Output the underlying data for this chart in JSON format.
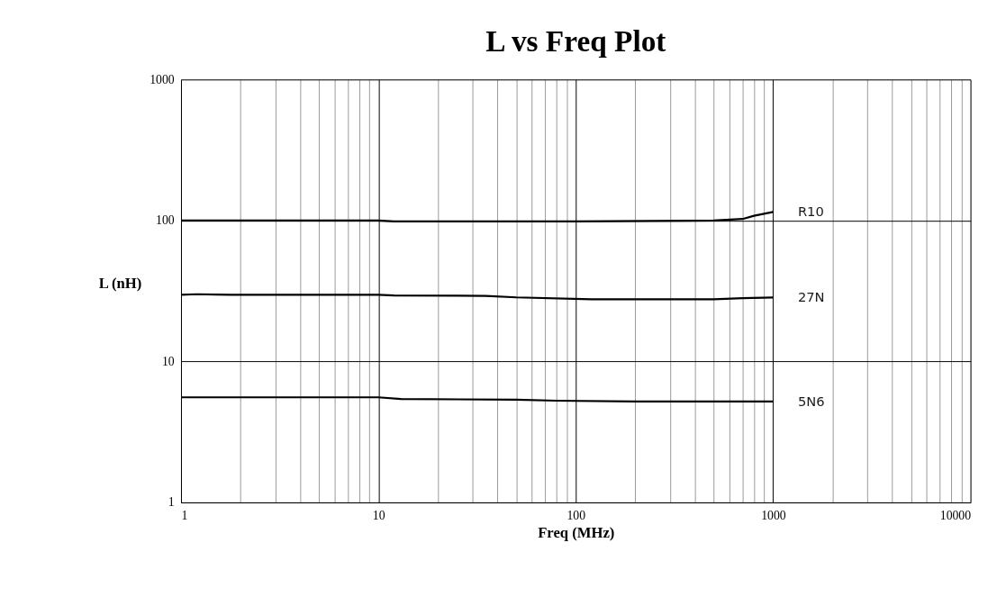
{
  "chart_data": {
    "type": "line",
    "title": "L vs Freq Plot",
    "xlabel": "Freq (MHz)",
    "ylabel": "L (nH)",
    "log": "xy",
    "xlim": [
      1,
      10000
    ],
    "ylim": [
      1,
      1000
    ],
    "xticks": [
      1,
      10,
      100,
      1000,
      10000
    ],
    "yticks": [
      1,
      10,
      100,
      1000
    ],
    "grid": true,
    "legend": false,
    "marker": "none",
    "line_style": "solid",
    "series": [
      {
        "name": "R10",
        "color": "#000000",
        "x": [
          1,
          10,
          12,
          100,
          500,
          700,
          800,
          1000
        ],
        "values": [
          100,
          100,
          98.5,
          98.5,
          100,
          102.5,
          108,
          115
        ]
      },
      {
        "name": "27N",
        "color": "#000000",
        "x": [
          1,
          1.2,
          1.5,
          2,
          10,
          12,
          35,
          50,
          120,
          500,
          700,
          1000
        ],
        "values": [
          29.7,
          30,
          29.8,
          29.7,
          29.7,
          29.4,
          29.2,
          28.5,
          27.6,
          27.6,
          28.1,
          28.4
        ]
      },
      {
        "name": "5N6",
        "color": "#000000",
        "x": [
          1,
          10,
          13,
          50,
          80,
          200,
          1000
        ],
        "values": [
          5.57,
          5.57,
          5.42,
          5.35,
          5.27,
          5.2,
          5.2
        ]
      }
    ]
  }
}
